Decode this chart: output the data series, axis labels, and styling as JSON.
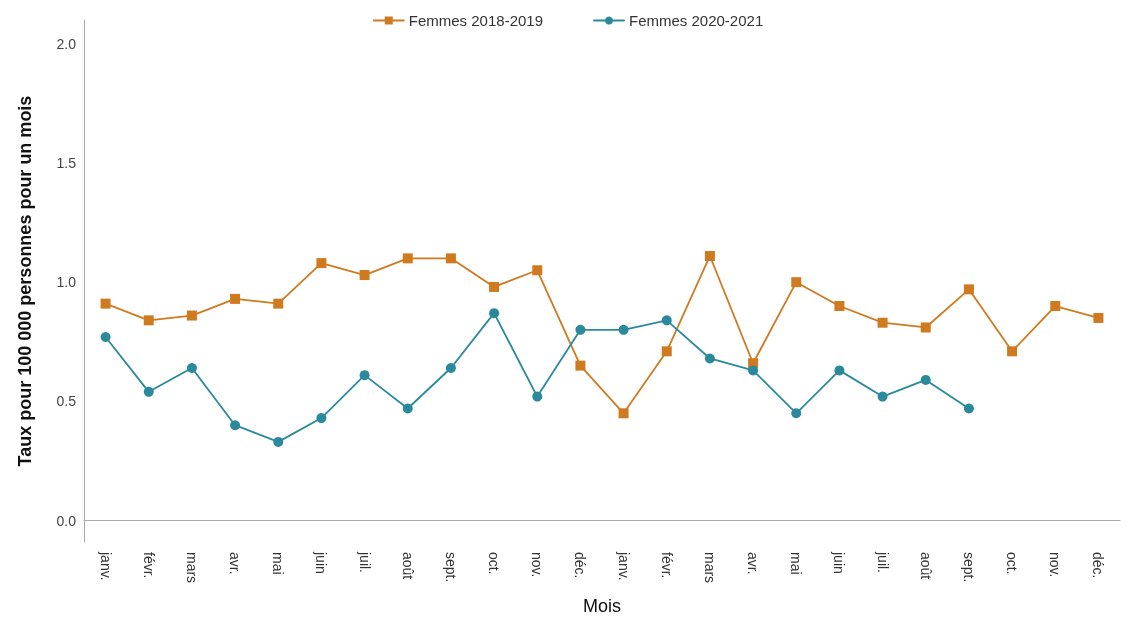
{
  "chart_data": {
    "type": "line",
    "xlabel": "Mois",
    "ylabel": "Taux pour 100 000 personnes pour un mois",
    "categories": [
      "janv.",
      "févr.",
      "mars",
      "avr.",
      "mai",
      "juin",
      "juil.",
      "août",
      "sept.",
      "oct.",
      "nov.",
      "déc.",
      "janv.",
      "févr.",
      "mars",
      "avr.",
      "mai",
      "juin",
      "juil.",
      "août",
      "sept.",
      "oct.",
      "nov.",
      "déc."
    ],
    "series": [
      {
        "name": "Femmes 2018-2019",
        "color": "#d07a1f",
        "marker": "square",
        "values": [
          0.91,
          0.84,
          0.86,
          0.93,
          0.91,
          1.08,
          1.03,
          1.1,
          1.1,
          0.98,
          1.05,
          0.65,
          0.45,
          0.71,
          1.11,
          0.66,
          1.0,
          0.9,
          0.83,
          0.81,
          0.97,
          0.71,
          0.9,
          0.85
        ]
      },
      {
        "name": "Femmes 2020-2021",
        "color": "#2a8a9c",
        "marker": "circle",
        "values": [
          0.77,
          0.54,
          0.64,
          0.4,
          0.33,
          0.43,
          0.61,
          0.47,
          0.64,
          0.87,
          0.52,
          0.8,
          0.8,
          0.84,
          0.68,
          0.63,
          0.45,
          0.63,
          0.52,
          0.59,
          0.47,
          null,
          null,
          null
        ]
      }
    ],
    "ylim": [
      -0.09,
      2.1
    ],
    "yticks": [
      {
        "value": 0,
        "label": "0.0"
      },
      0.5,
      {
        "value": 1,
        "label": "1.0"
      },
      1.5,
      {
        "value": 2,
        "label": "2.0"
      }
    ],
    "grid": false,
    "legend": "top",
    "line_style": "solid"
  }
}
